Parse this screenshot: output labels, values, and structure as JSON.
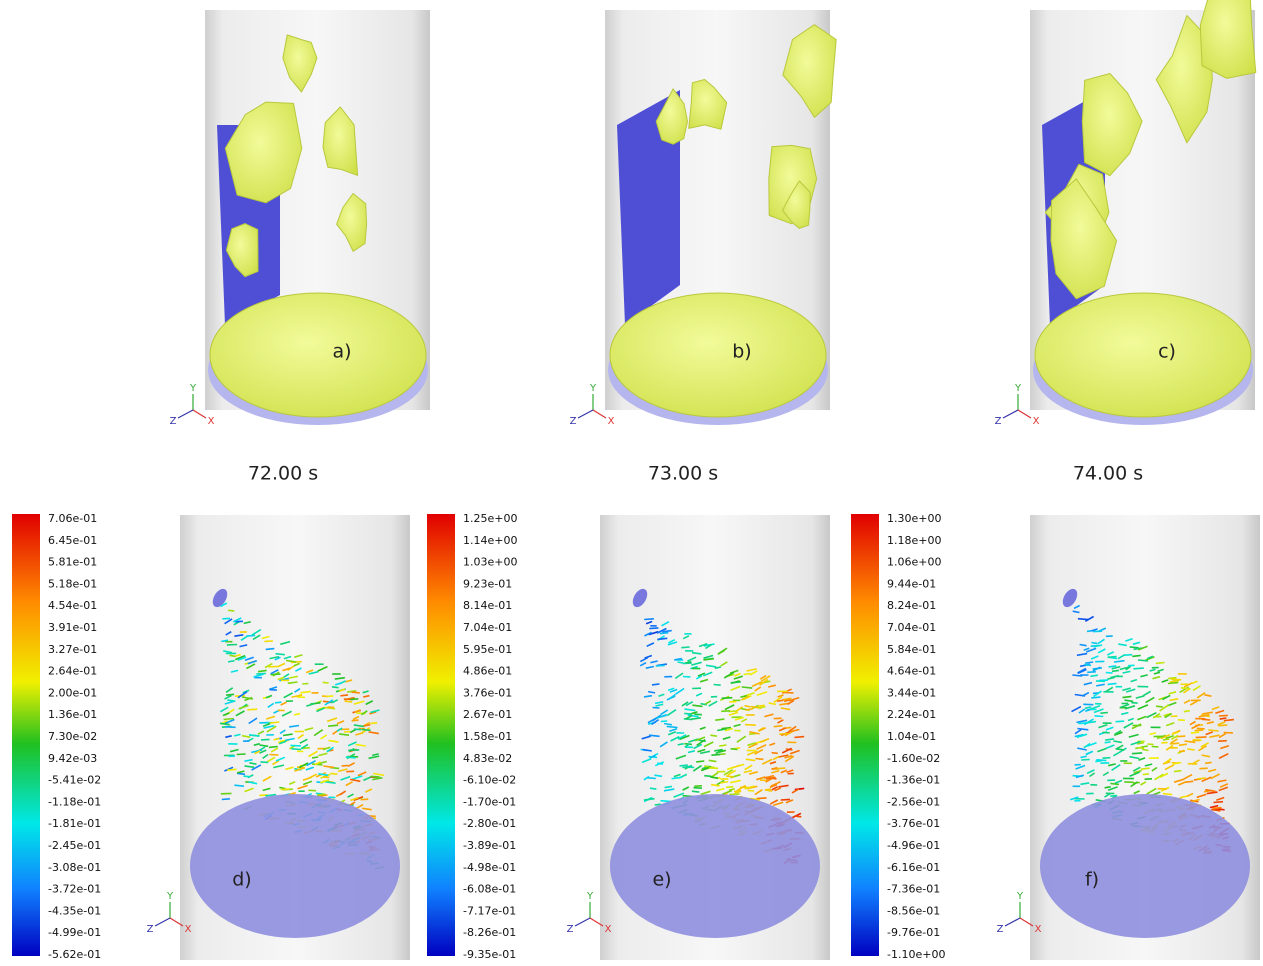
{
  "top_panels": [
    {
      "label": "a)",
      "time": "72.00 s"
    },
    {
      "label": "b)",
      "time": "73.00 s"
    },
    {
      "label": "c)",
      "time": "74.00 s"
    }
  ],
  "bottom_panels": [
    {
      "label": "d)",
      "colorbar": [
        "7.06e-01",
        "6.45e-01",
        "5.81e-01",
        "5.18e-01",
        "4.54e-01",
        "3.91e-01",
        "3.27e-01",
        "2.64e-01",
        "2.00e-01",
        "1.36e-01",
        "7.30e-02",
        "9.42e-03",
        "-5.41e-02",
        "-1.18e-01",
        "-1.81e-01",
        "-2.45e-01",
        "-3.08e-01",
        "-3.72e-01",
        "-4.35e-01",
        "-4.99e-01",
        "-5.62e-01"
      ]
    },
    {
      "label": "e)",
      "colorbar": [
        "1.25e+00",
        "1.14e+00",
        "1.03e+00",
        "9.23e-01",
        "8.14e-01",
        "7.04e-01",
        "5.95e-01",
        "4.86e-01",
        "3.76e-01",
        "2.67e-01",
        "1.58e-01",
        "4.83e-02",
        "-6.10e-02",
        "-1.70e-01",
        "-2.80e-01",
        "-3.89e-01",
        "-4.98e-01",
        "-6.08e-01",
        "-7.17e-01",
        "-8.26e-01",
        "-9.35e-01"
      ]
    },
    {
      "label": "f)",
      "colorbar": [
        "1.30e+00",
        "1.18e+00",
        "1.06e+00",
        "9.44e-01",
        "8.24e-01",
        "7.04e-01",
        "5.84e-01",
        "4.64e-01",
        "3.44e-01",
        "2.24e-01",
        "1.04e-01",
        "-1.60e-02",
        "-1.36e-01",
        "-2.56e-01",
        "-3.76e-01",
        "-4.96e-01",
        "-6.16e-01",
        "-7.36e-01",
        "-8.56e-01",
        "-9.76e-01",
        "-1.10e+00"
      ]
    }
  ],
  "axes": {
    "x": "X",
    "y": "Y",
    "z": "Z"
  }
}
